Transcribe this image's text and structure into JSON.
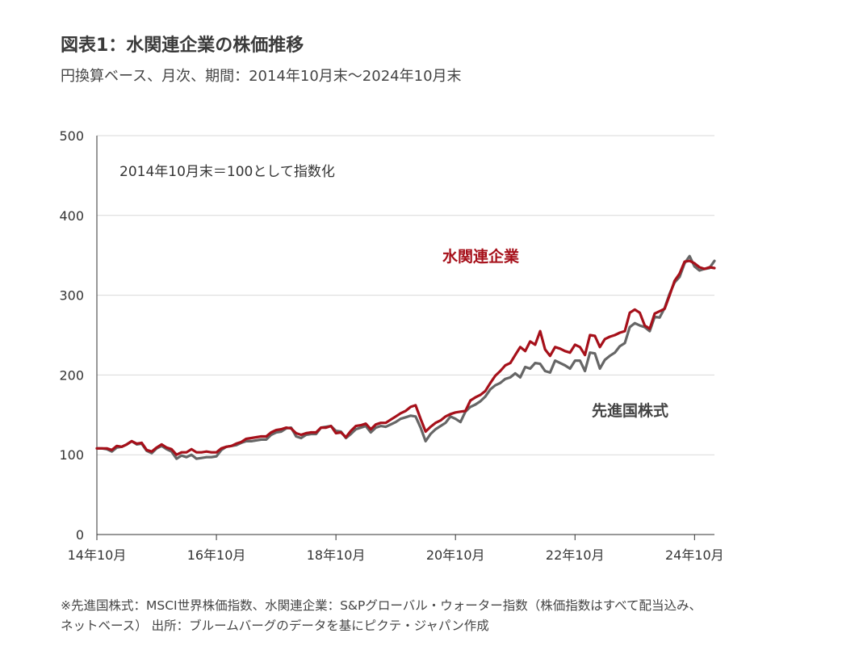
{
  "title": "図表1：水関連企業の株価推移",
  "subtitle": "円換算ベース、月次、期間：2014年10月末～2024年10月末",
  "footnote": {
    "line1": "※先進国株式：MSCI世界株価指数、水関連企業：S&Pグローバル・ウォーター指数（株価指数はすべて配当込み、",
    "line2": "ネットベース） 出所：ブルームバーグのデータを基にピクテ・ジャパン作成"
  },
  "chart_data": {
    "type": "line",
    "annotation": "2014年10月末＝100として指数化",
    "x_tick_labels": [
      "14年10月",
      "16年10月",
      "18年10月",
      "20年10月",
      "22年10月",
      "24年10月"
    ],
    "x_tick_index": [
      0,
      24,
      48,
      72,
      96,
      120
    ],
    "ylim": [
      0,
      500
    ],
    "yticks": [
      0,
      100,
      200,
      300,
      400,
      500
    ],
    "grid": "horizontal",
    "legend": "inline labels",
    "series": [
      {
        "name": "水関連企業",
        "color": "#a6101a",
        "values": [
          108,
          108,
          108,
          106,
          111,
          110,
          113,
          117,
          114,
          115,
          106,
          104,
          109,
          113,
          109,
          107,
          100,
          103,
          103,
          107,
          103,
          103,
          104,
          103,
          103,
          108,
          110,
          111,
          114,
          116,
          120,
          121,
          122,
          123,
          123,
          128,
          131,
          132,
          134,
          133,
          127,
          125,
          127,
          128,
          128,
          134,
          134,
          136,
          127,
          128,
          122,
          130,
          136,
          137,
          139,
          132,
          138,
          140,
          140,
          144,
          148,
          152,
          155,
          160,
          162,
          145,
          129,
          135,
          140,
          143,
          148,
          151,
          153,
          154,
          155,
          168,
          172,
          175,
          180,
          190,
          199,
          205,
          212,
          215,
          225,
          235,
          230,
          242,
          238,
          255,
          232,
          224,
          235,
          233,
          230,
          228,
          238,
          235,
          225,
          250,
          249,
          235,
          245,
          248,
          250,
          253,
          255,
          278,
          282,
          278,
          262,
          258,
          277,
          280,
          283,
          300,
          318,
          327,
          342,
          343,
          340,
          335,
          333,
          335,
          334
        ]
      },
      {
        "name": "先進国株式",
        "color": "#666666",
        "values": [
          108,
          108,
          107,
          104,
          109,
          110,
          113,
          117,
          113,
          114,
          105,
          102,
          108,
          111,
          107,
          104,
          95,
          99,
          97,
          100,
          95,
          96,
          97,
          97,
          98,
          106,
          110,
          111,
          112,
          115,
          117,
          117,
          118,
          119,
          119,
          125,
          128,
          129,
          133,
          134,
          123,
          121,
          125,
          126,
          126,
          134,
          135,
          136,
          130,
          129,
          121,
          126,
          132,
          134,
          136,
          128,
          134,
          136,
          135,
          138,
          141,
          145,
          147,
          149,
          148,
          134,
          117,
          126,
          132,
          136,
          140,
          148,
          145,
          141,
          154,
          160,
          163,
          167,
          173,
          182,
          187,
          190,
          195,
          197,
          202,
          197,
          210,
          208,
          215,
          214,
          205,
          203,
          218,
          215,
          212,
          208,
          218,
          218,
          205,
          228,
          227,
          208,
          219,
          224,
          228,
          236,
          240,
          260,
          265,
          262,
          260,
          255,
          273,
          272,
          284,
          302,
          316,
          323,
          340,
          349,
          336,
          331,
          333,
          334,
          343
        ]
      }
    ],
    "series_labels": [
      "水関連企業",
      "先進国株式"
    ]
  }
}
